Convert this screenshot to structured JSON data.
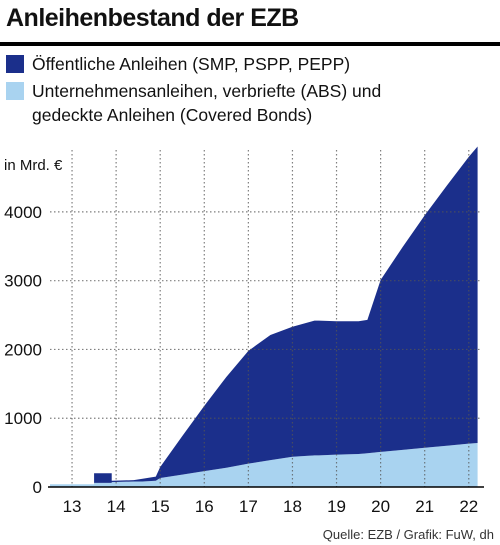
{
  "title": "Anleihenbestand der EZB",
  "legend": [
    {
      "label": "Öffentliche Anleihen (SMP, PSPP, PEPP)",
      "color": "#1b2f8b"
    },
    {
      "label_line1": "Unternehmensanleihen, verbriefte (ABS) und",
      "label_line2": "gedeckte Anleihen (Covered Bonds)",
      "color": "#a9d3f0"
    }
  ],
  "ylabel": "in Mrd. €",
  "source": "Quelle: EZB / Grafik: FuW, dh",
  "chart_data": {
    "type": "area",
    "stacked": true,
    "ylim": [
      0,
      4900
    ],
    "xlim": [
      12.5,
      22.3
    ],
    "yticks": [
      0,
      1000,
      2000,
      3000,
      4000
    ],
    "ytick_labels": [
      "0",
      "1000",
      "2000",
      "3000",
      "4000"
    ],
    "xtick_labels": [
      "13",
      "14",
      "15",
      "16",
      "17",
      "18",
      "19",
      "20",
      "21",
      "22"
    ],
    "grid": "vertical dotted at year boundaries, horizontal dotted at y ticks",
    "x": [
      12.5,
      13.5,
      13.5,
      13.9,
      13.9,
      14.4,
      14.6,
      14.9,
      15.0,
      15.5,
      16.0,
      16.5,
      17.0,
      17.5,
      18.0,
      18.5,
      18.6,
      19.0,
      19.5,
      19.7,
      20.0,
      20.5,
      21.0,
      21.5,
      22.0,
      22.2
    ],
    "series": [
      {
        "name": "Unternehmensanleihen, verbriefte (ABS) und gedeckte Anleihen (Covered Bonds)",
        "color": "#a9d3f0",
        "values": [
          40,
          40,
          60,
          60,
          70,
          80,
          80,
          90,
          130,
          180,
          230,
          280,
          340,
          390,
          440,
          460,
          460,
          470,
          480,
          490,
          510,
          540,
          570,
          600,
          630,
          640
        ]
      },
      {
        "name": "Öffentliche Anleihen (SMP, PSPP, PEPP)",
        "color": "#1b2f8b",
        "values": [
          0,
          0,
          140,
          140,
          20,
          20,
          40,
          60,
          160,
          560,
          950,
          1320,
          1640,
          1820,
          1890,
          1960,
          1960,
          1940,
          1930,
          1940,
          2500,
          2950,
          3380,
          3780,
          4170,
          4310
        ]
      }
    ]
  }
}
